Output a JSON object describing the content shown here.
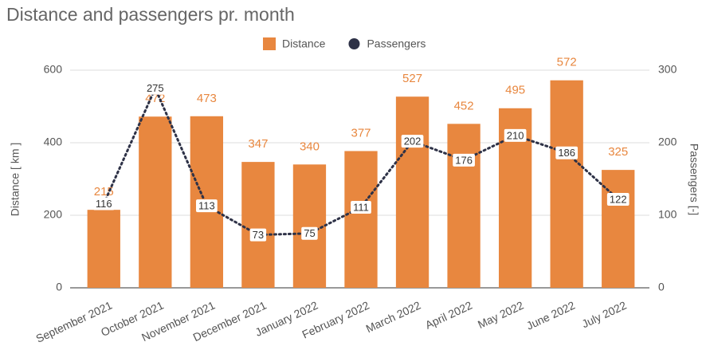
{
  "chart_data": {
    "type": "bar",
    "title": "Distance and passengers pr. month",
    "ylabel": "Distance [ km ]",
    "y2label": "Passengers [-]",
    "categories": [
      "September 2021",
      "October 2021",
      "November 2021",
      "December 2021",
      "January 2022",
      "February 2022",
      "March 2022",
      "April 2022",
      "May 2022",
      "June 2022",
      "July 2022"
    ],
    "series": [
      {
        "name": "Distance",
        "type": "bar",
        "color": "#e8873f",
        "values": [
          215,
          472,
          473,
          347,
          340,
          377,
          527,
          452,
          495,
          572,
          325
        ]
      },
      {
        "name": "Passengers",
        "type": "line",
        "axis": "y2",
        "color": "#2e3247",
        "values": [
          116,
          275,
          113,
          73,
          75,
          111,
          202,
          176,
          210,
          186,
          122
        ]
      }
    ],
    "ylim": [
      0,
      600
    ],
    "yticks": [
      0,
      200,
      400,
      600
    ],
    "y2lim": [
      0,
      300
    ],
    "y2ticks": [
      0,
      100,
      200,
      300
    ],
    "grid": true,
    "legend": "top"
  }
}
